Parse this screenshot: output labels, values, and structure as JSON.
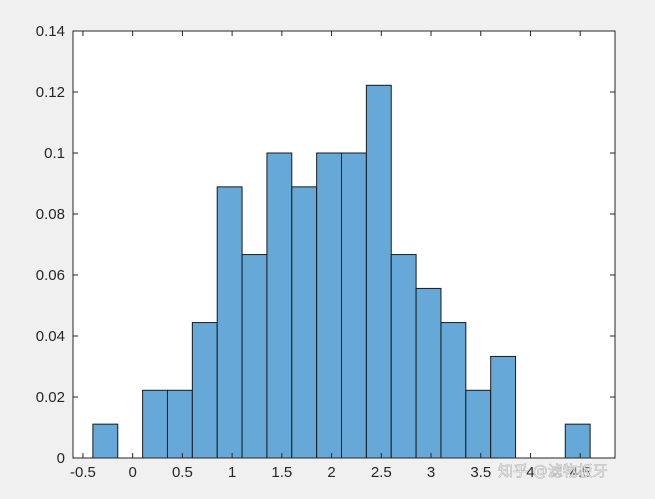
{
  "chart_data": {
    "type": "bar",
    "subtype": "histogram",
    "bin_edges": [
      -0.4,
      -0.15,
      0.1,
      0.35,
      0.6,
      0.85,
      1.1,
      1.35,
      1.6,
      1.85,
      2.1,
      2.35,
      2.6,
      2.85,
      3.1,
      3.35,
      3.6,
      3.85,
      4.1,
      4.35,
      4.6
    ],
    "values": [
      0.0111,
      0,
      0.0222,
      0.0222,
      0.0444,
      0.0889,
      0.0667,
      0.1,
      0.0889,
      0.1,
      0.1,
      0.1222,
      0.0667,
      0.0556,
      0.0444,
      0.0222,
      0.0333,
      0,
      0,
      0.0111
    ],
    "xlim": [
      -0.6,
      4.85
    ],
    "ylim": [
      0,
      0.14
    ],
    "xticks": [
      -0.5,
      0,
      0.5,
      1,
      1.5,
      2,
      2.5,
      3,
      3.5,
      4,
      4.5
    ],
    "xtick_labels": [
      "-0.5",
      "0",
      "0.5",
      "1",
      "1.5",
      "2",
      "2.5",
      "3",
      "3.5",
      "4",
      "4.5"
    ],
    "yticks": [
      0,
      0.02,
      0.04,
      0.06,
      0.08,
      0.1,
      0.12,
      0.14
    ],
    "ytick_labels": [
      "0",
      "0.02",
      "0.04",
      "0.06",
      "0.08",
      "0.1",
      "0.12",
      "0.14"
    ],
    "title": "",
    "xlabel": "",
    "ylabel": "",
    "grid": false,
    "bar_color": "#66a8d8",
    "edge_color": "#1a1a1a",
    "axes_color": "#262626",
    "figure_background": "#f0f0f0",
    "axes_background": "#ffffff"
  },
  "watermark": {
    "text": "知乎 @滤物板牙"
  }
}
